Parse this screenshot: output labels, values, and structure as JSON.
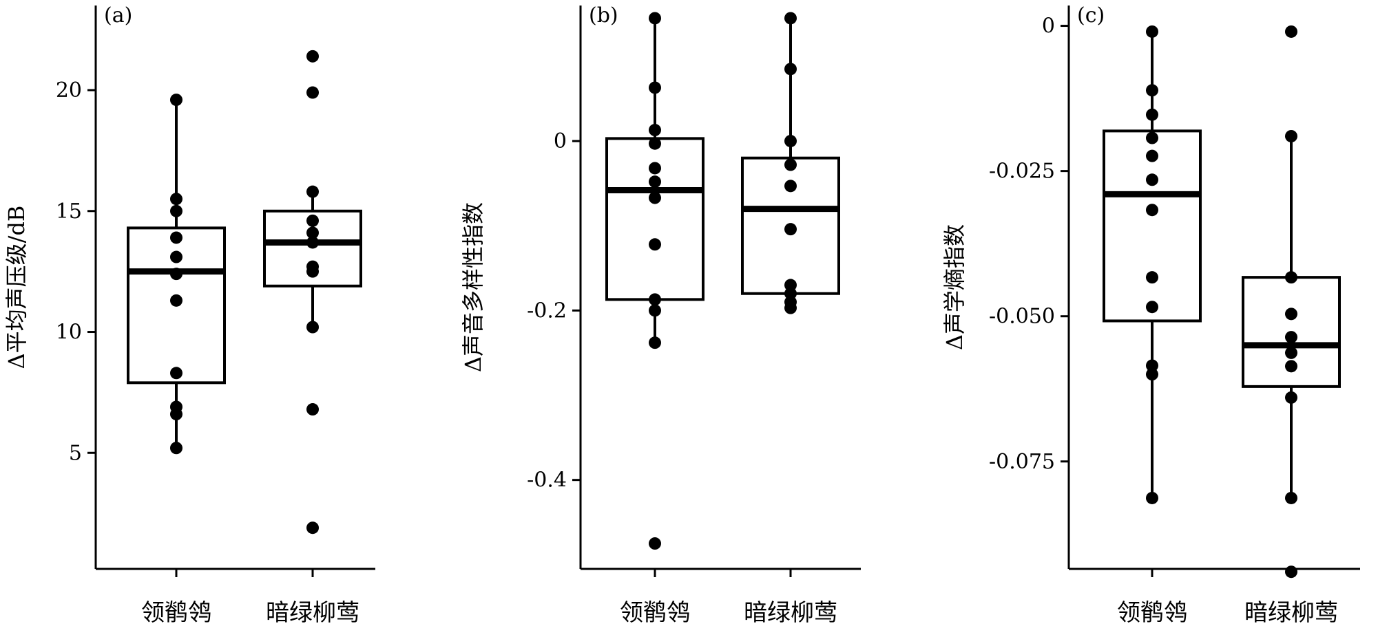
{
  "chart_data": [
    {
      "type": "box",
      "panel_label": "(a)",
      "ylabel": "Δ平均声压级/dB",
      "ylim": [
        0.2,
        23.5
      ],
      "yticks": [
        5,
        10,
        15,
        20
      ],
      "ytick_labels": [
        "5",
        "10",
        "15",
        "20"
      ],
      "categories": [
        "领鹡鸰",
        "暗绿柳莺"
      ],
      "boxes": [
        {
          "category": "领鹡鸰",
          "min": 5.2,
          "q1": 7.9,
          "median": 12.5,
          "q3": 14.3,
          "max": 19.6,
          "points": [
            19.6,
            15.5,
            15.0,
            13.9,
            13.1,
            12.4,
            11.3,
            8.3,
            6.9,
            6.6,
            5.2
          ]
        },
        {
          "category": "暗绿柳莺",
          "min": 10.2,
          "q1": 11.9,
          "median": 13.7,
          "q3": 15.0,
          "max": 15.8,
          "points": [
            21.4,
            19.9,
            15.8,
            14.6,
            14.1,
            13.7,
            12.7,
            12.5,
            10.2,
            6.8,
            1.9
          ]
        }
      ]
    },
    {
      "type": "box",
      "panel_label": "(b)",
      "ylabel": "Δ声音多样性指数",
      "ylim": [
        -0.505,
        0.16
      ],
      "yticks": [
        -0.4,
        -0.2,
        0
      ],
      "ytick_labels": [
        "-0.4",
        "-0.2",
        "0"
      ],
      "categories": [
        "领鹡鸰",
        "暗绿柳莺"
      ],
      "boxes": [
        {
          "category": "领鹡鸰",
          "min": -0.238,
          "q1": -0.187,
          "median": -0.058,
          "q3": 0.003,
          "max": 0.145,
          "points": [
            0.145,
            0.063,
            0.013,
            -0.003,
            -0.032,
            -0.048,
            -0.067,
            -0.122,
            -0.187,
            -0.2,
            -0.238,
            -0.475
          ]
        },
        {
          "category": "暗绿柳莺",
          "min": -0.197,
          "q1": -0.18,
          "median": -0.08,
          "q3": -0.02,
          "max": 0.145,
          "points": [
            0.145,
            0.085,
            0.0,
            -0.028,
            -0.053,
            -0.104,
            -0.17,
            -0.18,
            -0.19,
            -0.197
          ]
        }
      ]
    },
    {
      "type": "box",
      "panel_label": "(c)",
      "ylabel": "Δ声学熵指数",
      "ylim": [
        -0.0935,
        0.0035
      ],
      "yticks": [
        -0.075,
        -0.05,
        -0.025,
        0
      ],
      "ytick_labels": [
        "-0.075",
        "-0.050",
        "-0.025",
        "0"
      ],
      "categories": [
        "领鹡鸰",
        "暗绿柳莺"
      ],
      "boxes": [
        {
          "category": "领鹡鸰",
          "min": -0.0813,
          "q1": -0.0508,
          "median": -0.029,
          "q3": -0.0181,
          "max": -0.001,
          "points": [
            -0.001,
            -0.0111,
            -0.0153,
            -0.0193,
            -0.0224,
            -0.0265,
            -0.0317,
            -0.0433,
            -0.0484,
            -0.0585,
            -0.06,
            -0.0813
          ]
        },
        {
          "category": "暗绿柳莺",
          "min": -0.0813,
          "q1": -0.0621,
          "median": -0.055,
          "q3": -0.0433,
          "max": -0.019,
          "points": [
            -0.001,
            -0.019,
            -0.0433,
            -0.0496,
            -0.0536,
            -0.0563,
            -0.0586,
            -0.064,
            -0.0813,
            -0.094
          ]
        }
      ]
    }
  ]
}
